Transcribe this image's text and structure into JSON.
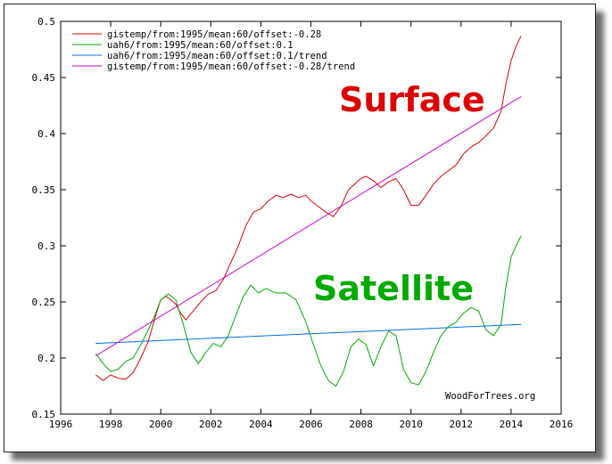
{
  "chart_data": {
    "type": "line",
    "title": "",
    "xlabel": "",
    "ylabel": "",
    "xlim": [
      1996,
      2016
    ],
    "ylim": [
      0.15,
      0.5
    ],
    "x_ticks": [
      "1996",
      "1998",
      "2000",
      "2002",
      "2004",
      "2006",
      "2008",
      "2010",
      "2012",
      "2014",
      "2016"
    ],
    "y_ticks": [
      "0.15",
      "0.2",
      "0.25",
      "0.3",
      "0.35",
      "0.4",
      "0.45",
      "0.5"
    ],
    "grid": false,
    "legend_position": "top-left",
    "series": [
      {
        "name": "gistemp/from:1995/mean:60/offset:-0.28",
        "color": "#dd0000",
        "style": "line",
        "points": [
          [
            1997.4,
            0.185
          ],
          [
            1997.7,
            0.18
          ],
          [
            1998.0,
            0.185
          ],
          [
            1998.3,
            0.182
          ],
          [
            1998.6,
            0.181
          ],
          [
            1998.9,
            0.187
          ],
          [
            1999.2,
            0.2
          ],
          [
            1999.5,
            0.215
          ],
          [
            1999.8,
            0.238
          ],
          [
            2000.0,
            0.252
          ],
          [
            2000.2,
            0.255
          ],
          [
            2000.4,
            0.252
          ],
          [
            2000.6,
            0.248
          ],
          [
            2000.8,
            0.24
          ],
          [
            2001.0,
            0.234
          ],
          [
            2001.3,
            0.242
          ],
          [
            2001.6,
            0.25
          ],
          [
            2001.9,
            0.257
          ],
          [
            2002.2,
            0.26
          ],
          [
            2002.5,
            0.27
          ],
          [
            2002.8,
            0.285
          ],
          [
            2003.1,
            0.3
          ],
          [
            2003.4,
            0.318
          ],
          [
            2003.7,
            0.33
          ],
          [
            2004.0,
            0.333
          ],
          [
            2004.3,
            0.34
          ],
          [
            2004.6,
            0.345
          ],
          [
            2004.9,
            0.343
          ],
          [
            2005.2,
            0.346
          ],
          [
            2005.5,
            0.343
          ],
          [
            2005.8,
            0.345
          ],
          [
            2006.0,
            0.34
          ],
          [
            2006.3,
            0.335
          ],
          [
            2006.6,
            0.33
          ],
          [
            2006.9,
            0.326
          ],
          [
            2007.2,
            0.335
          ],
          [
            2007.5,
            0.35
          ],
          [
            2007.8,
            0.356
          ],
          [
            2008.0,
            0.36
          ],
          [
            2008.2,
            0.362
          ],
          [
            2008.5,
            0.358
          ],
          [
            2008.8,
            0.352
          ],
          [
            2009.1,
            0.357
          ],
          [
            2009.4,
            0.36
          ],
          [
            2009.7,
            0.35
          ],
          [
            2010.0,
            0.336
          ],
          [
            2010.3,
            0.336
          ],
          [
            2010.6,
            0.345
          ],
          [
            2010.9,
            0.355
          ],
          [
            2011.2,
            0.362
          ],
          [
            2011.5,
            0.367
          ],
          [
            2011.8,
            0.372
          ],
          [
            2012.1,
            0.382
          ],
          [
            2012.4,
            0.388
          ],
          [
            2012.7,
            0.392
          ],
          [
            2013.0,
            0.398
          ],
          [
            2013.3,
            0.405
          ],
          [
            2013.6,
            0.42
          ],
          [
            2013.8,
            0.445
          ],
          [
            2014.0,
            0.465
          ],
          [
            2014.2,
            0.478
          ],
          [
            2014.4,
            0.487
          ]
        ]
      },
      {
        "name": "uah6/from:1995/mean:60/offset:0.1",
        "color": "#00aa00",
        "style": "line",
        "points": [
          [
            1997.4,
            0.204
          ],
          [
            1997.7,
            0.195
          ],
          [
            1998.0,
            0.188
          ],
          [
            1998.3,
            0.19
          ],
          [
            1998.6,
            0.197
          ],
          [
            1998.9,
            0.2
          ],
          [
            1999.2,
            0.212
          ],
          [
            1999.5,
            0.225
          ],
          [
            1999.8,
            0.24
          ],
          [
            2000.0,
            0.252
          ],
          [
            2000.3,
            0.257
          ],
          [
            2000.6,
            0.252
          ],
          [
            2000.9,
            0.23
          ],
          [
            2001.2,
            0.205
          ],
          [
            2001.5,
            0.195
          ],
          [
            2001.8,
            0.205
          ],
          [
            2002.1,
            0.213
          ],
          [
            2002.4,
            0.21
          ],
          [
            2002.7,
            0.22
          ],
          [
            2003.0,
            0.238
          ],
          [
            2003.3,
            0.255
          ],
          [
            2003.6,
            0.265
          ],
          [
            2003.9,
            0.258
          ],
          [
            2004.2,
            0.262
          ],
          [
            2004.6,
            0.258
          ],
          [
            2005.0,
            0.258
          ],
          [
            2005.4,
            0.252
          ],
          [
            2005.8,
            0.232
          ],
          [
            2006.1,
            0.212
          ],
          [
            2006.4,
            0.193
          ],
          [
            2006.7,
            0.18
          ],
          [
            2007.0,
            0.175
          ],
          [
            2007.3,
            0.188
          ],
          [
            2007.6,
            0.21
          ],
          [
            2007.9,
            0.217
          ],
          [
            2008.2,
            0.212
          ],
          [
            2008.5,
            0.193
          ],
          [
            2008.8,
            0.21
          ],
          [
            2009.1,
            0.224
          ],
          [
            2009.4,
            0.22
          ],
          [
            2009.7,
            0.19
          ],
          [
            2010.0,
            0.178
          ],
          [
            2010.3,
            0.176
          ],
          [
            2010.6,
            0.188
          ],
          [
            2010.9,
            0.205
          ],
          [
            2011.2,
            0.22
          ],
          [
            2011.5,
            0.228
          ],
          [
            2011.8,
            0.232
          ],
          [
            2012.1,
            0.24
          ],
          [
            2012.4,
            0.245
          ],
          [
            2012.7,
            0.242
          ],
          [
            2013.0,
            0.225
          ],
          [
            2013.3,
            0.22
          ],
          [
            2013.6,
            0.23
          ],
          [
            2013.8,
            0.265
          ],
          [
            2014.0,
            0.29
          ],
          [
            2014.2,
            0.3
          ],
          [
            2014.4,
            0.309
          ]
        ]
      },
      {
        "name": "uah6/from:1995/mean:60/offset:0.1/trend",
        "color": "#0070dd",
        "style": "line",
        "points": [
          [
            1997.4,
            0.213
          ],
          [
            2014.4,
            0.23
          ]
        ]
      },
      {
        "name": "gistemp/from:1995/mean:60/offset:-0.28/trend",
        "color": "#cc00cc",
        "style": "line",
        "points": [
          [
            1997.4,
            0.202
          ],
          [
            2014.4,
            0.433
          ]
        ]
      }
    ],
    "annotations": [
      {
        "text": "Surface",
        "color": "#dd0000"
      },
      {
        "text": "Satellite",
        "color": "#00aa00"
      },
      {
        "text": "WoodForTrees.org",
        "color": "#000000"
      }
    ]
  }
}
